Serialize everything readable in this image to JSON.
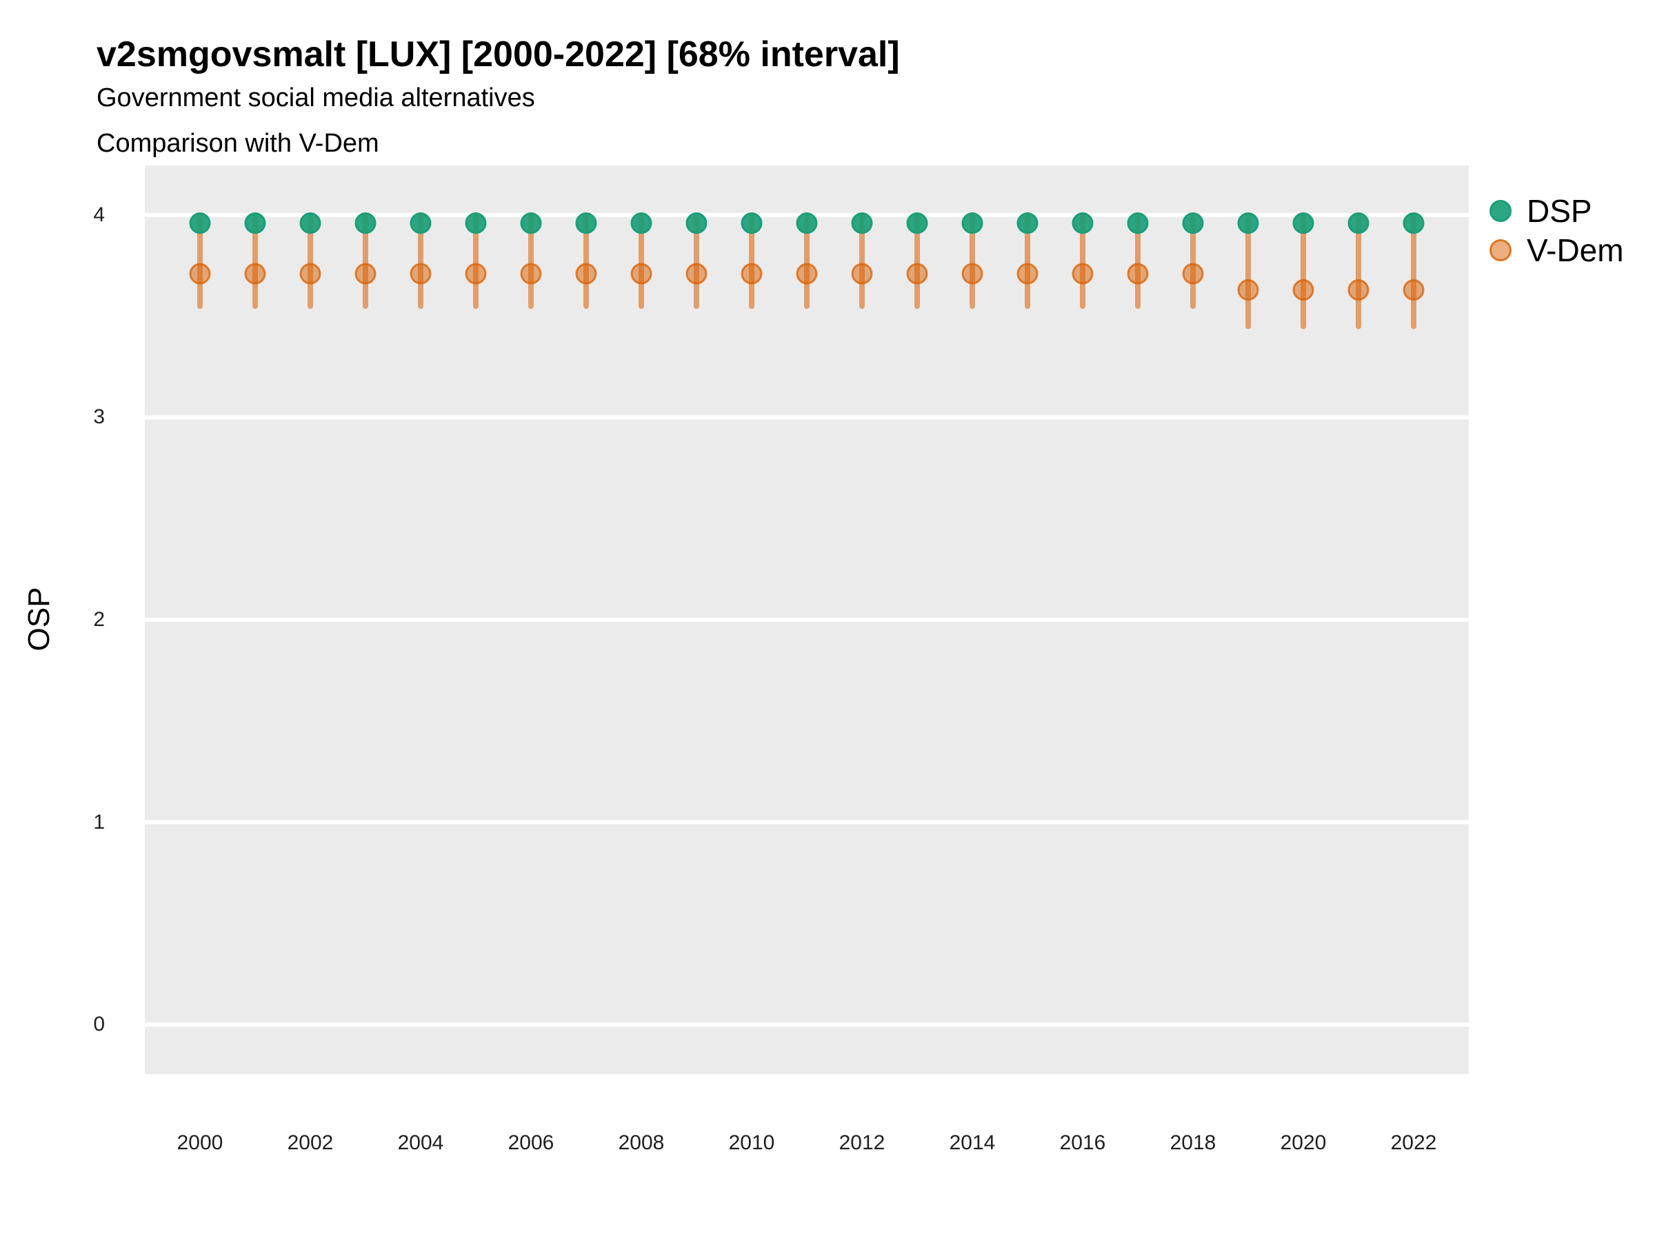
{
  "title": "v2smgovsmalt [LUX] [2000-2022] [68% interval]",
  "subtitle_line1": "Government social media alternatives",
  "subtitle_line2": "Comparison with V-Dem",
  "axes": {
    "y_title": "OSP",
    "y_ticks": [
      0,
      1,
      2,
      3,
      4
    ],
    "x_tick_labels": [
      "2000",
      "2002",
      "2004",
      "2006",
      "2008",
      "2010",
      "2012",
      "2014",
      "2016",
      "2018",
      "2020",
      "2022"
    ]
  },
  "legend": {
    "items": [
      {
        "label": "DSP",
        "color": "#1B9E77"
      },
      {
        "label": "V-Dem",
        "color": "#D95F02"
      }
    ]
  },
  "colors": {
    "dsp_green": "#1B9E77",
    "vdem_orange": "#D95F02",
    "panel_background": "#EBEBEB",
    "gridline": "#FFFFFF",
    "text": "#000000"
  },
  "chart_data": {
    "type": "scatter",
    "title": "v2smgovsmalt [LUX] [2000-2022] [68% interval]",
    "subtitle": "Government social media alternatives — Comparison with V-Dem",
    "xlabel": "",
    "ylabel": "OSP",
    "ylim": [
      -0.245,
      4.245
    ],
    "grid": "horizontal major gridlines only, white on gray panel",
    "legend_position": "right-top",
    "x": [
      2000,
      2001,
      2002,
      2003,
      2004,
      2005,
      2006,
      2007,
      2008,
      2009,
      2010,
      2011,
      2012,
      2013,
      2014,
      2015,
      2016,
      2017,
      2018,
      2019,
      2020,
      2021,
      2022
    ],
    "series": [
      {
        "name": "DSP",
        "values": [
          3.96,
          3.96,
          3.96,
          3.96,
          3.96,
          3.96,
          3.96,
          3.96,
          3.96,
          3.96,
          3.96,
          3.96,
          3.96,
          3.96,
          3.96,
          3.96,
          3.96,
          3.96,
          3.96,
          3.96,
          3.96,
          3.96,
          3.96
        ]
      },
      {
        "name": "V-Dem",
        "values": [
          3.71,
          3.71,
          3.71,
          3.71,
          3.71,
          3.71,
          3.71,
          3.71,
          3.71,
          3.71,
          3.71,
          3.71,
          3.71,
          3.71,
          3.71,
          3.71,
          3.71,
          3.71,
          3.71,
          3.63,
          3.63,
          3.63,
          3.63
        ],
        "interval68_low": [
          3.55,
          3.55,
          3.55,
          3.55,
          3.55,
          3.55,
          3.55,
          3.55,
          3.55,
          3.55,
          3.55,
          3.55,
          3.55,
          3.55,
          3.55,
          3.55,
          3.55,
          3.55,
          3.55,
          3.45,
          3.45,
          3.45,
          3.45
        ],
        "interval68_high": [
          4.0,
          4.0,
          4.0,
          4.0,
          4.0,
          4.0,
          4.0,
          4.0,
          4.0,
          4.0,
          4.0,
          4.0,
          4.0,
          4.0,
          4.0,
          4.0,
          4.0,
          4.0,
          4.0,
          4.0,
          4.0,
          4.0,
          4.0
        ]
      }
    ]
  }
}
